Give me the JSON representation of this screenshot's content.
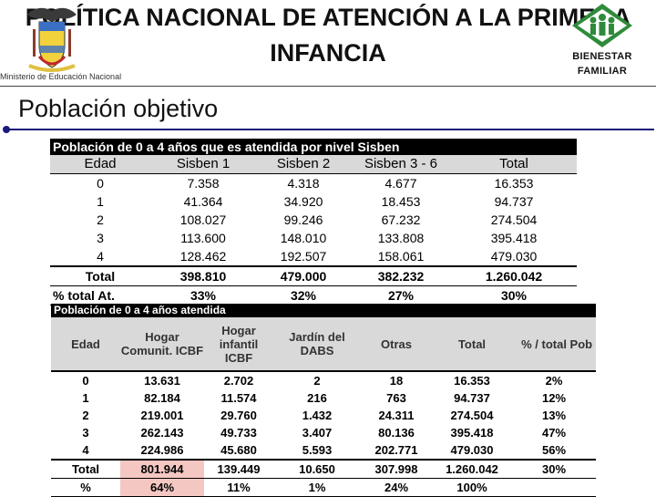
{
  "header": {
    "title_line1": "POLÍTICA NACIONAL DE ATENCIÓN A LA PRIMERA",
    "title_line2": "INFANCIA",
    "subtitle": "Ministerio de Educación Nacional",
    "logo_right_line1": "BIENESTAR",
    "logo_right_line2": "FAMILIAR"
  },
  "section_title": "Población objetivo",
  "table1": {
    "caption": "Población de 0 a 4 años que es atendida por nivel Sisben",
    "columns": [
      "Edad",
      "Sisben 1",
      "Sisben 2",
      "Sisben 3 - 6",
      "Total"
    ],
    "rows": [
      [
        "0",
        "7.358",
        "4.318",
        "4.677",
        "16.353"
      ],
      [
        "1",
        "41.364",
        "34.920",
        "18.453",
        "94.737"
      ],
      [
        "2",
        "108.027",
        "99.246",
        "67.232",
        "274.504"
      ],
      [
        "3",
        "113.600",
        "148.010",
        "133.808",
        "395.418"
      ],
      [
        "4",
        "128.462",
        "192.507",
        "158.061",
        "479.030"
      ]
    ],
    "total": [
      "Total",
      "398.810",
      "479.000",
      "382.232",
      "1.260.042"
    ],
    "pct": [
      "% total At.",
      "33%",
      "32%",
      "27%",
      "30%"
    ]
  },
  "table2": {
    "caption": "Población de 0 a 4 años atendida",
    "columns": [
      "Edad",
      "Hogar Comunit. ICBF",
      "Hogar infantil ICBF",
      "Jardín del DABS",
      "Otras",
      "Total",
      "% / total Pob"
    ],
    "rows": [
      [
        "0",
        "13.631",
        "2.702",
        "2",
        "18",
        "16.353",
        "2%"
      ],
      [
        "1",
        "82.184",
        "11.574",
        "216",
        "763",
        "94.737",
        "12%"
      ],
      [
        "2",
        "219.001",
        "29.760",
        "1.432",
        "24.311",
        "274.504",
        "13%"
      ],
      [
        "3",
        "262.143",
        "49.733",
        "3.407",
        "80.136",
        "395.418",
        "47%"
      ],
      [
        "4",
        "224.986",
        "45.680",
        "5.593",
        "202.771",
        "479.030",
        "56%"
      ]
    ],
    "total": [
      "Total",
      "801.944",
      "139.449",
      "10.650",
      "307.998",
      "1.260.042",
      "30%"
    ],
    "pct": [
      "%",
      "64%",
      "11%",
      "1%",
      "24%",
      "100%",
      ""
    ]
  }
}
